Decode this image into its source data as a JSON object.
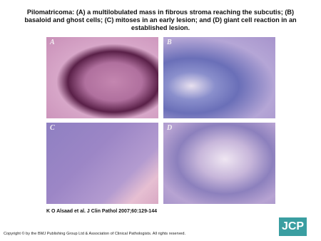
{
  "header": {
    "title": "Pilomatricoma: (A) a multilobulated mass in fibrous stroma reaching the subcutis; (B) basaloid and ghost cells; (C) mitoses in an early lesion; and (D) giant cell reaction in an established lesion."
  },
  "panels": [
    {
      "label": "A"
    },
    {
      "label": "B"
    },
    {
      "label": "C"
    },
    {
      "label": "D"
    }
  ],
  "citation": "K O Alsaad et al. J Clin Pathol 2007;60:129-144",
  "copyright": "Copyright © by the BMJ Publishing Group Ltd & Association of Clinical Pathologists. All rights reserved.",
  "logo": "JCP"
}
